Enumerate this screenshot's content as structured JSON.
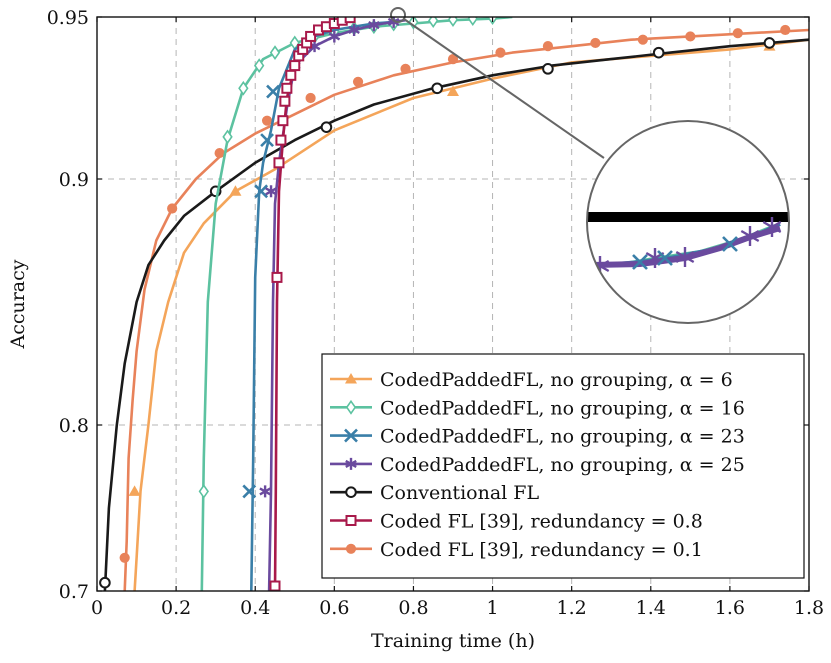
{
  "chart_data": {
    "type": "line",
    "xlabel": "Training time (h)",
    "ylabel": "Accuracy",
    "xlim": [
      0,
      1.8
    ],
    "ylim": [
      0.7,
      0.95
    ],
    "x_ticks": [
      0,
      0.2,
      0.4,
      0.6,
      0.8,
      1,
      1.2,
      1.4,
      1.6,
      1.8
    ],
    "x_tick_labels": [
      "0",
      "0.2",
      "0.4",
      "0.6",
      "0.8",
      "1",
      "1.2",
      "1.4",
      "1.6",
      "1.8"
    ],
    "y_ticks": [
      0.7,
      0.8,
      0.9,
      0.95
    ],
    "y_tick_labels": [
      "0.7",
      "0.8",
      "0.9",
      "0.95"
    ],
    "y_scale": "nonlinear (0.7–0.9 compressed, 0.9–0.95 expanded)",
    "grid": true,
    "legend_position": "bottom-right",
    "series": [
      {
        "name": "CodedPaddedFL, no grouping, α = 6",
        "color": "#f4a55a",
        "marker": "triangle",
        "x": [
          0.095,
          0.1,
          0.11,
          0.13,
          0.15,
          0.18,
          0.22,
          0.27,
          0.35,
          0.45,
          0.6,
          0.8,
          1.0,
          1.2,
          1.4,
          1.6,
          1.8
        ],
        "y": [
          0.7,
          0.72,
          0.76,
          0.8,
          0.83,
          0.85,
          0.87,
          0.882,
          0.895,
          0.903,
          0.915,
          0.925,
          0.931,
          0.936,
          0.938,
          0.94,
          0.943
        ],
        "marker_x": [
          0.095,
          0.35,
          0.9,
          1.7
        ],
        "marker_y": [
          0.76,
          0.895,
          0.927,
          0.941
        ]
      },
      {
        "name": "CodedPaddedFL, no grouping, α = 16",
        "color": "#5cc2a0",
        "marker": "diamond",
        "x": [
          0.265,
          0.27,
          0.28,
          0.3,
          0.33,
          0.37,
          0.42,
          0.5,
          0.6,
          0.7,
          0.8,
          0.9,
          1.0,
          1.05
        ],
        "y": [
          0.7,
          0.78,
          0.85,
          0.89,
          0.912,
          0.928,
          0.937,
          0.942,
          0.945,
          0.947,
          0.948,
          0.949,
          0.9495,
          0.95
        ],
        "marker_x": [
          0.27,
          0.33,
          0.37,
          0.41,
          0.45,
          0.5,
          0.55,
          0.6,
          0.65,
          0.7,
          0.75,
          0.8,
          0.85,
          0.9,
          0.95,
          1.0
        ],
        "marker_y": [
          0.76,
          0.913,
          0.928,
          0.935,
          0.939,
          0.942,
          0.944,
          0.9455,
          0.9465,
          0.947,
          0.9478,
          0.9484,
          0.9489,
          0.9492,
          0.9495,
          0.9498
        ]
      },
      {
        "name": "CodedPaddedFL, no grouping, α = 23",
        "color": "#3a7fa8",
        "marker": "x",
        "x": [
          0.39,
          0.395,
          0.4,
          0.41,
          0.42,
          0.44,
          0.46,
          0.5,
          0.55,
          0.6,
          0.65,
          0.7,
          0.75
        ],
        "y": [
          0.7,
          0.78,
          0.86,
          0.895,
          0.905,
          0.915,
          0.928,
          0.94,
          0.944,
          0.946,
          0.947,
          0.948,
          0.9485
        ],
        "marker_x": [
          0.385,
          0.415,
          0.43,
          0.445
        ],
        "marker_y": [
          0.76,
          0.895,
          0.912,
          0.927
        ]
      },
      {
        "name": "CodedPaddedFL, no grouping, α = 25",
        "color": "#6a4a9e",
        "marker": "asterisk",
        "x": [
          0.435,
          0.44,
          0.445,
          0.45,
          0.46,
          0.48,
          0.5,
          0.55,
          0.6,
          0.65,
          0.7,
          0.75,
          0.78
        ],
        "y": [
          0.7,
          0.76,
          0.85,
          0.89,
          0.905,
          0.922,
          0.935,
          0.941,
          0.944,
          0.946,
          0.9475,
          0.9485,
          0.949
        ],
        "marker_x": [
          0.425,
          0.44,
          0.5,
          0.55,
          0.6,
          0.65,
          0.7,
          0.75
        ],
        "marker_y": [
          0.76,
          0.895,
          0.935,
          0.941,
          0.944,
          0.946,
          0.9475,
          0.9485
        ]
      },
      {
        "name": "Conventional FL",
        "color": "#1a1a1a",
        "marker": "circle-open",
        "x": [
          0.02,
          0.03,
          0.05,
          0.07,
          0.1,
          0.13,
          0.17,
          0.22,
          0.3,
          0.4,
          0.5,
          0.6,
          0.7,
          0.85,
          1.0,
          1.15,
          1.3,
          1.45,
          1.6,
          1.8
        ],
        "y": [
          0.7,
          0.75,
          0.8,
          0.825,
          0.85,
          0.865,
          0.875,
          0.885,
          0.895,
          0.905,
          0.912,
          0.918,
          0.923,
          0.928,
          0.932,
          0.935,
          0.937,
          0.939,
          0.941,
          0.943
        ],
        "marker_x": [
          0.02,
          0.3,
          0.58,
          0.86,
          1.14,
          1.42,
          1.7
        ],
        "marker_y": [
          0.705,
          0.895,
          0.916,
          0.928,
          0.934,
          0.939,
          0.942
        ]
      },
      {
        "name": "Coded FL [39], redundancy = 0.8",
        "color": "#a8194a",
        "marker": "square-open",
        "x": [
          0.45,
          0.452,
          0.455,
          0.46,
          0.47,
          0.48,
          0.5,
          0.53,
          0.56,
          0.6,
          0.63,
          0.65
        ],
        "y": [
          0.7,
          0.76,
          0.85,
          0.895,
          0.912,
          0.925,
          0.935,
          0.942,
          0.946,
          0.948,
          0.9495,
          0.95
        ],
        "marker_x": [
          0.45,
          0.455,
          0.46,
          0.465,
          0.47,
          0.475,
          0.48,
          0.49,
          0.5,
          0.51,
          0.52,
          0.53,
          0.54,
          0.56,
          0.58,
          0.6,
          0.62,
          0.64
        ],
        "marker_y": [
          0.703,
          0.86,
          0.905,
          0.912,
          0.918,
          0.924,
          0.928,
          0.932,
          0.935,
          0.938,
          0.94,
          0.942,
          0.944,
          0.946,
          0.947,
          0.948,
          0.949,
          0.9498
        ]
      },
      {
        "name": "Coded FL [39], redundancy = 0.1",
        "color": "#e8825a",
        "marker": "circle-filled",
        "x": [
          0.07,
          0.075,
          0.08,
          0.09,
          0.1,
          0.12,
          0.15,
          0.19,
          0.25,
          0.32,
          0.4,
          0.5,
          0.6,
          0.75,
          0.9,
          1.05,
          1.2,
          1.35,
          1.5,
          1.65,
          1.8
        ],
        "y": [
          0.7,
          0.73,
          0.78,
          0.81,
          0.83,
          0.855,
          0.875,
          0.888,
          0.9,
          0.908,
          0.914,
          0.92,
          0.926,
          0.932,
          0.936,
          0.939,
          0.941,
          0.943,
          0.944,
          0.945,
          0.946
        ],
        "marker_x": [
          0.07,
          0.19,
          0.31,
          0.43,
          0.54,
          0.66,
          0.78,
          0.9,
          1.02,
          1.14,
          1.26,
          1.38,
          1.5,
          1.62,
          1.74
        ],
        "marker_y": [
          0.72,
          0.888,
          0.908,
          0.918,
          0.925,
          0.93,
          0.934,
          0.937,
          0.939,
          0.941,
          0.942,
          0.943,
          0.944,
          0.945,
          0.946
        ]
      }
    ],
    "legend_entries": [
      "CodedPaddedFL, no grouping, α = 6",
      "CodedPaddedFL, no grouping, α = 16",
      "CodedPaddedFL, no grouping, α = 23",
      "CodedPaddedFL, no grouping, α = 25",
      "Conventional FL",
      "Coded FL [39], redundancy = 0.8",
      "Coded FL [39], redundancy = 0.1"
    ],
    "annotation": "zoom inset magnifying region near (0.77, 0.95)"
  }
}
